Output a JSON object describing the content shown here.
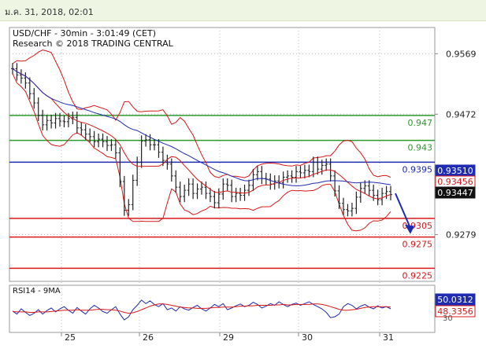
{
  "header": {
    "timestamp": "ม.ค. 31, 2018, 02:01"
  },
  "chart_data": {
    "type": "line",
    "title": "USD/CHF - 30min - 3:01:49 (CET)",
    "subtitle": "Research © 2018 TRADING CENTRAL",
    "price_axis": {
      "ticks": [
        "0.9569",
        "0.9472",
        "0.9279"
      ],
      "tick_values": [
        0.9569,
        0.9472,
        0.9279
      ],
      "ylim": [
        0.9204,
        0.9611
      ]
    },
    "x_ticks": [
      "25",
      "26",
      "29",
      "30",
      "31"
    ],
    "levels": [
      {
        "label": "0.947",
        "value": 0.947,
        "color": "#2a9a2a"
      },
      {
        "label": "0.943",
        "value": 0.943,
        "color": "#2a9a2a"
      },
      {
        "label": "0.9395",
        "value": 0.9395,
        "color": "#1f2bb0"
      },
      {
        "label": "0.9305",
        "value": 0.9305,
        "color": "#d81818"
      },
      {
        "label": "0.9275",
        "value": 0.9275,
        "color": "#d81818"
      },
      {
        "label": "0.9225",
        "value": 0.9225,
        "color": "#d81818"
      }
    ],
    "price_tags": [
      {
        "label": "0.93510",
        "value": 0.9351,
        "color": "#1f2bb0"
      },
      {
        "label": "0.93456",
        "value": 0.93456,
        "color": "#d81818"
      },
      {
        "label": "0.93447",
        "value": 0.93447,
        "color": "#111111"
      }
    ],
    "forecast_arrow": {
      "from": 0.9345,
      "to": 0.9285
    },
    "price_series": [
      0.9545,
      0.9535,
      0.953,
      0.9522,
      0.9505,
      0.949,
      0.947,
      0.9455,
      0.9462,
      0.9458,
      0.9465,
      0.9461,
      0.946,
      0.9465,
      0.9467,
      0.945,
      0.9447,
      0.944,
      0.9436,
      0.9428,
      0.9432,
      0.9428,
      0.9422,
      0.9423,
      0.941,
      0.9364,
      0.9318,
      0.9327,
      0.9366,
      0.9395,
      0.9429,
      0.9431,
      0.9423,
      0.9423,
      0.9411,
      0.9398,
      0.9392,
      0.9373,
      0.9355,
      0.934,
      0.935,
      0.936,
      0.9345,
      0.9352,
      0.9355,
      0.9345,
      0.934,
      0.933,
      0.9344,
      0.936,
      0.9358,
      0.934,
      0.9345,
      0.9342,
      0.935,
      0.9358,
      0.9375,
      0.938,
      0.9369,
      0.9368,
      0.936,
      0.9365,
      0.9362,
      0.9371,
      0.9373,
      0.9371,
      0.938,
      0.9378,
      0.9382,
      0.938,
      0.9395,
      0.9384,
      0.939,
      0.9392,
      0.9373,
      0.9349,
      0.9329,
      0.9319,
      0.9317,
      0.9321,
      0.9339,
      0.9353,
      0.9357,
      0.935,
      0.9342,
      0.9335,
      0.9345,
      0.9348,
      0.9343
    ],
    "rsi_panel": {
      "label": "RSI14 - 9MA",
      "tags": [
        {
          "label": "50.0312",
          "color": "#1f2bb0"
        },
        {
          "label": "48.3356",
          "color": "#d81818"
        }
      ],
      "axis_label": "30",
      "ylim": [
        0,
        100
      ],
      "series": [
        {
          "name": "RSI14",
          "values": [
            45,
            38,
            50,
            42,
            35,
            40,
            48,
            38,
            46,
            52,
            43,
            50,
            55,
            47,
            40,
            53,
            45,
            38,
            50,
            58,
            52,
            44,
            40,
            48,
            55,
            38,
            25,
            32,
            48,
            58,
            70,
            62,
            68,
            60,
            55,
            62,
            48,
            52,
            45,
            55,
            50,
            47,
            53,
            58,
            50,
            45,
            52,
            60,
            55,
            62,
            48,
            52,
            57,
            61,
            55,
            58,
            65,
            60,
            52,
            56,
            62,
            58,
            66,
            60,
            55,
            60,
            63,
            58,
            62,
            66,
            60,
            55,
            50,
            42,
            30,
            32,
            38,
            55,
            62,
            58,
            50,
            56,
            60,
            54,
            50,
            57,
            52,
            55,
            50
          ]
        },
        {
          "name": "9MA",
          "values": [
            44,
            43,
            43,
            43,
            42,
            42,
            43,
            43,
            43,
            44,
            45,
            46,
            47,
            47,
            47,
            48,
            47,
            47,
            47,
            48,
            49,
            49,
            48,
            48,
            47,
            45,
            42,
            40,
            41,
            44,
            48,
            52,
            56,
            59,
            61,
            61,
            60,
            58,
            56,
            54,
            53,
            52,
            52,
            51,
            51,
            51,
            52,
            53,
            53,
            54,
            54,
            54,
            55,
            56,
            56,
            57,
            57,
            58,
            58,
            58,
            58,
            59,
            59,
            60,
            59,
            59,
            60,
            60,
            60,
            60,
            61,
            61,
            60,
            58,
            55,
            52,
            49,
            47,
            47,
            48,
            49,
            51,
            53,
            54,
            55,
            55,
            55,
            55,
            54
          ]
        }
      ]
    }
  }
}
